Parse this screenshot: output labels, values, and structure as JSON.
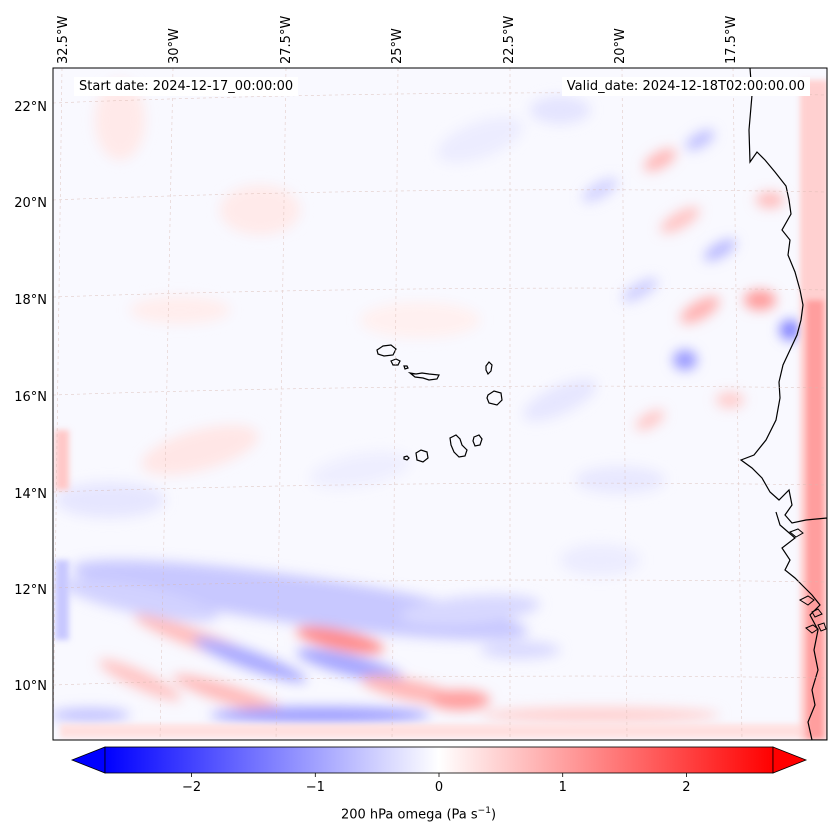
{
  "map": {
    "lon_labels": [
      "32.5°W",
      "30°W",
      "27.5°W",
      "25°W",
      "22.5°W",
      "20°W",
      "17.5°W"
    ],
    "lat_labels": [
      "22°N",
      "20°N",
      "18°N",
      "16°N",
      "14°N",
      "12°N",
      "10°N"
    ],
    "start_date": "Start date: 2024-12-17_00:00:00",
    "valid_date": "Valid_date: 2024-12-18T02:00:00.00",
    "field": "200 hPa omega",
    "islands": [
      "Santo Antao",
      "Sao Vicente",
      "Santa Luzia",
      "Sao Nicolau",
      "Sal",
      "Boa Vista",
      "Maio",
      "Santiago",
      "Fogo",
      "Brava"
    ]
  },
  "colorbar": {
    "tick_labels": [
      "−2",
      "−1",
      "0",
      "1",
      "2"
    ],
    "tick_values": [
      -2,
      -1,
      0,
      1,
      2
    ],
    "vmin": -2.7,
    "vmax": 2.7,
    "label": "200 hPa omega (Pa s",
    "label_sup": "−1",
    "label_end": ")",
    "colormap": "bwr"
  },
  "colors": {
    "negative": "#0000ff",
    "zero": "#ffffff",
    "positive": "#ff0000",
    "coastline": "#000000",
    "gridline": "#d8b8b0"
  }
}
